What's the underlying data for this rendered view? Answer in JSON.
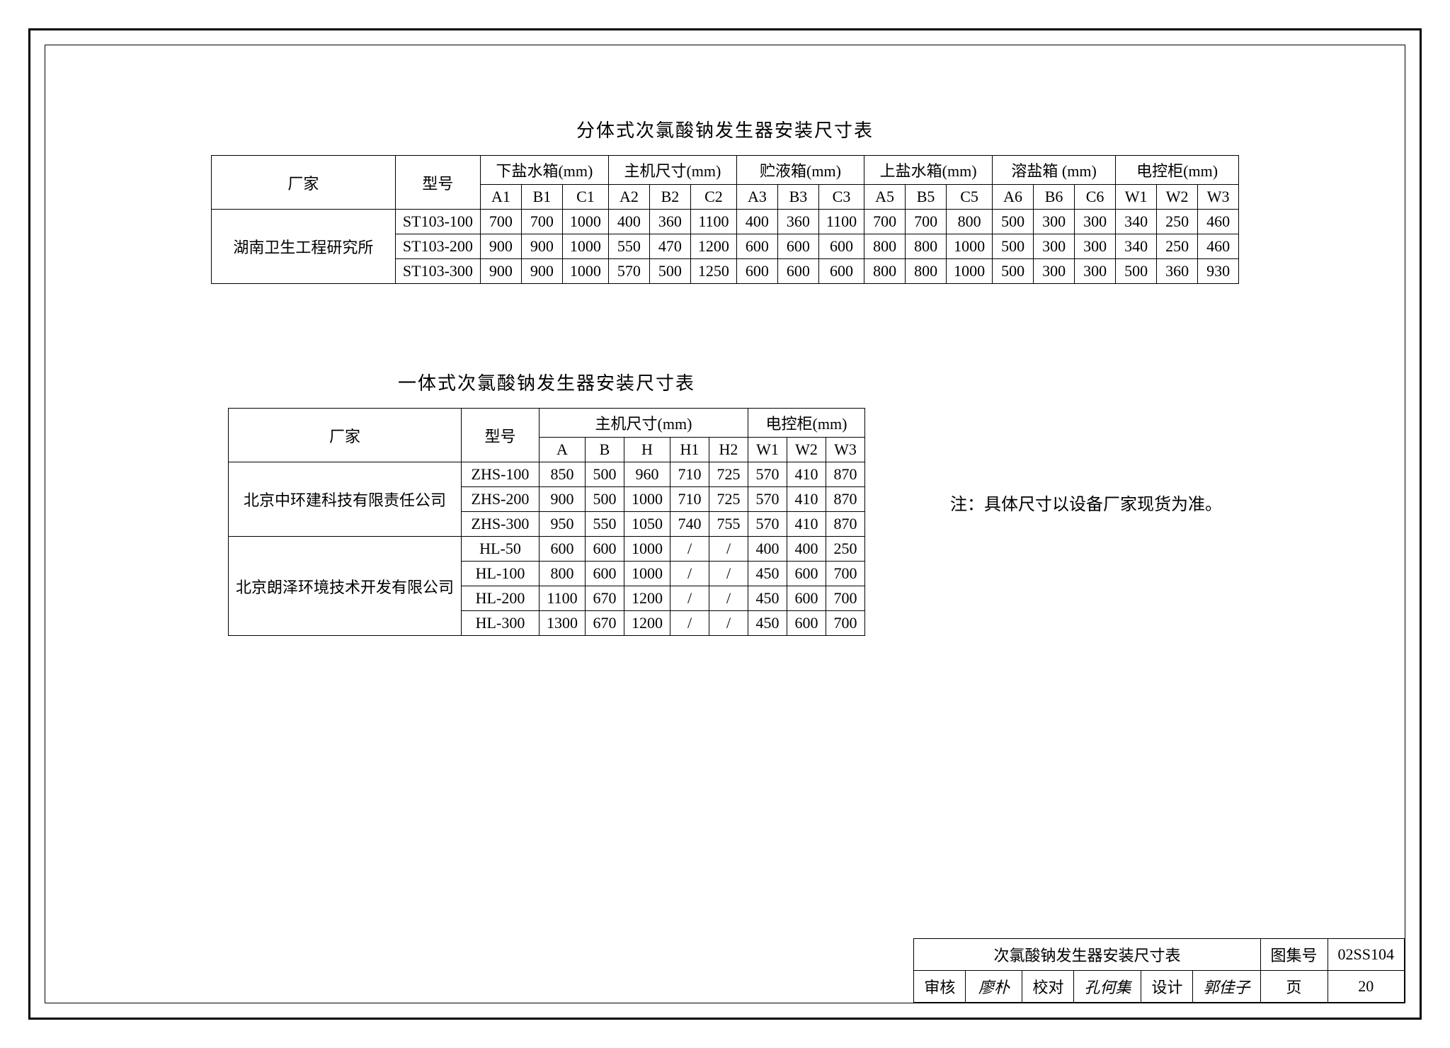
{
  "table1": {
    "title": "分体式次氯酸钠发生器安装尺寸表",
    "headers": {
      "manufacturer": "厂家",
      "model": "型号",
      "groups": [
        {
          "label": "下盐水箱(mm)",
          "cols": [
            "A1",
            "B1",
            "C1"
          ]
        },
        {
          "label": "主机尺寸(mm)",
          "cols": [
            "A2",
            "B2",
            "C2"
          ]
        },
        {
          "label": "贮液箱(mm)",
          "cols": [
            "A3",
            "B3",
            "C3"
          ]
        },
        {
          "label": "上盐水箱(mm)",
          "cols": [
            "A5",
            "B5",
            "C5"
          ]
        },
        {
          "label": "溶盐箱 (mm)",
          "cols": [
            "A6",
            "B6",
            "C6"
          ]
        },
        {
          "label": "电控柜(mm)",
          "cols": [
            "W1",
            "W2",
            "W3"
          ]
        }
      ]
    },
    "manufacturer": "湖南卫生工程研究所",
    "rows": [
      {
        "model": "ST103-100",
        "vals": [
          "700",
          "700",
          "1000",
          "400",
          "360",
          "1100",
          "400",
          "360",
          "1100",
          "700",
          "700",
          "800",
          "500",
          "300",
          "300",
          "340",
          "250",
          "460"
        ]
      },
      {
        "model": "ST103-200",
        "vals": [
          "900",
          "900",
          "1000",
          "550",
          "470",
          "1200",
          "600",
          "600",
          "600",
          "800",
          "800",
          "1000",
          "500",
          "300",
          "300",
          "340",
          "250",
          "460"
        ]
      },
      {
        "model": "ST103-300",
        "vals": [
          "900",
          "900",
          "1000",
          "570",
          "500",
          "1250",
          "600",
          "600",
          "600",
          "800",
          "800",
          "1000",
          "500",
          "300",
          "300",
          "500",
          "360",
          "930"
        ]
      }
    ]
  },
  "table2": {
    "title": "一体式次氯酸钠发生器安装尺寸表",
    "headers": {
      "manufacturer": "厂家",
      "model": "型号",
      "groups": [
        {
          "label": "主机尺寸(mm)",
          "cols": [
            "A",
            "B",
            "H",
            "H1",
            "H2"
          ]
        },
        {
          "label": "电控柜(mm)",
          "cols": [
            "W1",
            "W2",
            "W3"
          ]
        }
      ]
    },
    "blocks": [
      {
        "manufacturer": "北京中环建科技有限责任公司",
        "rows": [
          {
            "model": "ZHS-100",
            "vals": [
              "850",
              "500",
              "960",
              "710",
              "725",
              "570",
              "410",
              "870"
            ]
          },
          {
            "model": "ZHS-200",
            "vals": [
              "900",
              "500",
              "1000",
              "710",
              "725",
              "570",
              "410",
              "870"
            ]
          },
          {
            "model": "ZHS-300",
            "vals": [
              "950",
              "550",
              "1050",
              "740",
              "755",
              "570",
              "410",
              "870"
            ]
          }
        ]
      },
      {
        "manufacturer": "北京朗泽环境技术开发有限公司",
        "rows": [
          {
            "model": "HL-50",
            "vals": [
              "600",
              "600",
              "1000",
              "/",
              "/",
              "400",
              "400",
              "250"
            ]
          },
          {
            "model": "HL-100",
            "vals": [
              "800",
              "600",
              "1000",
              "/",
              "/",
              "450",
              "600",
              "700"
            ]
          },
          {
            "model": "HL-200",
            "vals": [
              "1100",
              "670",
              "1200",
              "/",
              "/",
              "450",
              "600",
              "700"
            ]
          },
          {
            "model": "HL-300",
            "vals": [
              "1300",
              "670",
              "1200",
              "/",
              "/",
              "450",
              "600",
              "700"
            ]
          }
        ]
      }
    ]
  },
  "note": "注：具体尺寸以设备厂家现货为准。",
  "titleblock": {
    "title": "次氯酸钠发生器安装尺寸表",
    "atlas_label": "图集号",
    "atlas_no": "02SS104",
    "review_label": "审核",
    "review_sig": "廖朴",
    "check_label": "校对",
    "check_sig": "孔何集",
    "design_label": "设计",
    "design_sig": "郭佳子",
    "page_label": "页",
    "page_no": "20"
  }
}
